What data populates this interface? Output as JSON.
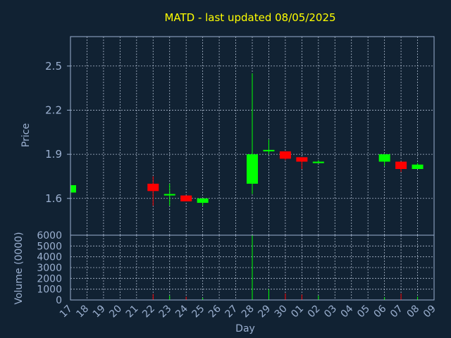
{
  "chart_data": {
    "type": "candlestick",
    "title": "MATD - last updated 08/05/2025",
    "ylabel": "Price",
    "volume_label": "Volume (0000)",
    "xlabel": "Day",
    "ylim": [
      1.35,
      2.7
    ],
    "yticks": [
      "1.6",
      "1.9",
      "2.2",
      "2.5"
    ],
    "volume_ylim": [
      0,
      6000
    ],
    "volume_ticks": [
      "0",
      "1000",
      "2000",
      "3000",
      "4000",
      "5000",
      "6000"
    ],
    "days": [
      "17",
      "18",
      "19",
      "20",
      "21",
      "22",
      "23",
      "24",
      "25",
      "26",
      "27",
      "28",
      "29",
      "30",
      "01",
      "02",
      "03",
      "04",
      "05",
      "06",
      "07",
      "08",
      "09"
    ],
    "up_color": "#00ff00",
    "down_color": "#ff0000",
    "grid": true,
    "candles": [
      {
        "day": "17",
        "open": 1.64,
        "close": 1.69,
        "high": 1.69,
        "low": 1.64,
        "volume": 100
      },
      {
        "day": "22",
        "open": 1.7,
        "close": 1.65,
        "high": 1.75,
        "low": 1.55,
        "volume": 550
      },
      {
        "day": "23",
        "open": 1.62,
        "close": 1.63,
        "high": 1.7,
        "low": 1.55,
        "volume": 400
      },
      {
        "day": "24",
        "open": 1.62,
        "close": 1.58,
        "high": 1.62,
        "low": 1.58,
        "volume": 300
      },
      {
        "day": "25",
        "open": 1.57,
        "close": 1.6,
        "high": 1.6,
        "low": 1.55,
        "volume": 200
      },
      {
        "day": "28",
        "open": 1.7,
        "close": 1.9,
        "high": 2.45,
        "low": 1.63,
        "volume": 6000
      },
      {
        "day": "29",
        "open": 1.92,
        "close": 1.93,
        "high": 2.0,
        "low": 1.9,
        "volume": 1000
      },
      {
        "day": "30",
        "open": 1.92,
        "close": 1.87,
        "high": 1.92,
        "low": 1.86,
        "volume": 600
      },
      {
        "day": "01",
        "open": 1.88,
        "close": 1.85,
        "high": 1.88,
        "low": 1.8,
        "volume": 500
      },
      {
        "day": "02",
        "open": 1.84,
        "close": 1.85,
        "high": 1.86,
        "low": 1.84,
        "volume": 400
      },
      {
        "day": "06",
        "open": 1.85,
        "close": 1.9,
        "high": 1.9,
        "low": 1.82,
        "volume": 250
      },
      {
        "day": "07",
        "open": 1.85,
        "close": 1.8,
        "high": 1.85,
        "low": 1.78,
        "volume": 600
      },
      {
        "day": "08",
        "open": 1.8,
        "close": 1.83,
        "high": 1.84,
        "low": 1.8,
        "volume": 300
      }
    ]
  }
}
